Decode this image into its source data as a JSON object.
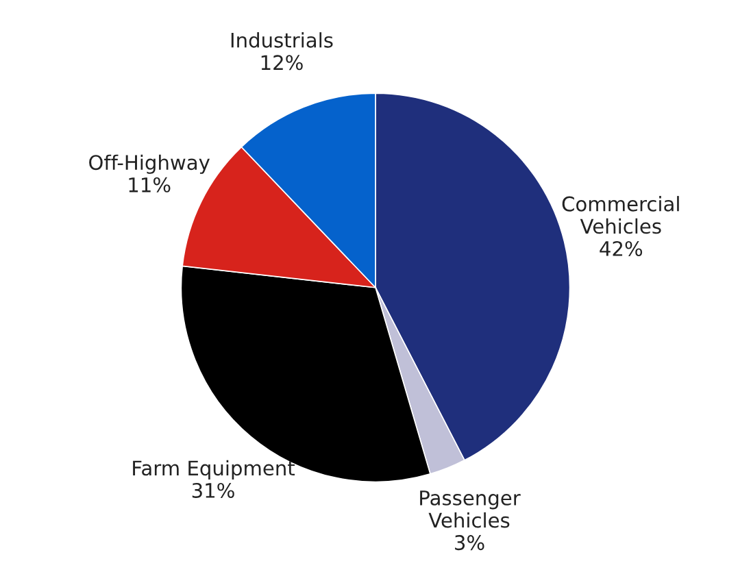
{
  "chart_data": {
    "type": "pie",
    "categories": [
      "Commercial Vehicles",
      "Passenger Vehicles",
      "Farm Equipment",
      "Off-Highway",
      "Industrials"
    ],
    "values": [
      42,
      3,
      31,
      11,
      12
    ],
    "value_labels": [
      "42%",
      "3%",
      "31%",
      "11%",
      "12%"
    ],
    "colors": [
      "#1f2f7c",
      "#c0c0d8",
      "#000000",
      "#d7231c",
      "#0562cc"
    ]
  }
}
